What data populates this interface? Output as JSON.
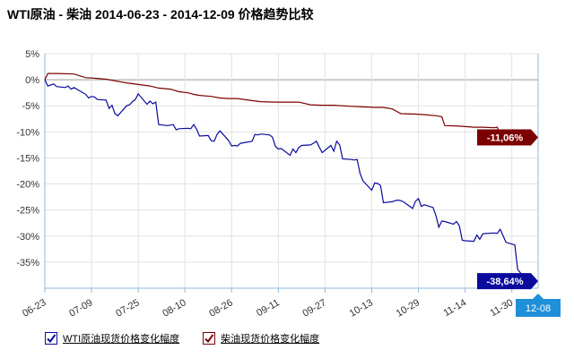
{
  "title": "WTI原油  - 柴油  2014-06-23  - 2014-12-09  价格趋势比较",
  "colors": {
    "wti": "#0a0a9c",
    "diesel": "#7b0000",
    "range_badge": "#1f8fd8",
    "zero_line": "#9a9a9a",
    "grid": "#e2e2e2",
    "axis": "#8fb8d8"
  },
  "range_end_badge": "12-08",
  "chart_data": {
    "type": "line",
    "y_unit": "%",
    "ylim": [
      -40,
      5
    ],
    "y_ticks": [
      5,
      0,
      -5,
      -10,
      -15,
      -20,
      -25,
      -30,
      -35
    ],
    "y_tick_labels": [
      "5%",
      "0%",
      "-5%",
      "-10%",
      "-15%",
      "-20%",
      "-25%",
      "-30%",
      "-35%"
    ],
    "x_range": [
      "2014-06-23",
      "2014-12-09"
    ],
    "x_ticks": [
      "2014-06-23",
      "2014-07-09",
      "2014-07-25",
      "2014-08-10",
      "2014-08-26",
      "2014-09-11",
      "2014-09-27",
      "2014-10-13",
      "2014-10-29",
      "2014-11-14",
      "2014-11-30"
    ],
    "x_tick_labels": [
      "06-23",
      "07-09",
      "07-25",
      "08-10",
      "08-26",
      "09-11",
      "09-27",
      "10-13",
      "10-29",
      "11-14",
      "11-30"
    ],
    "grid": true,
    "legend_position": "bottom-left",
    "series": [
      {
        "name": "WTI原油现货价格变化幅度",
        "color": "#0a0a9c",
        "end_label": "-38,64%",
        "points": [
          [
            "2014-06-23",
            0
          ],
          [
            "2014-06-24",
            -1.2
          ],
          [
            "2014-06-26",
            -0.8
          ],
          [
            "2014-06-27",
            -1.3
          ],
          [
            "2014-06-30",
            -1.5
          ],
          [
            "2014-07-01",
            -1.2
          ],
          [
            "2014-07-02",
            -1.8
          ],
          [
            "2014-07-03",
            -1.5
          ],
          [
            "2014-07-07",
            -2.8
          ],
          [
            "2014-07-08",
            -3.5
          ],
          [
            "2014-07-09",
            -3.2
          ],
          [
            "2014-07-10",
            -3.3
          ],
          [
            "2014-07-11",
            -3.8
          ],
          [
            "2014-07-14",
            -3.9
          ],
          [
            "2014-07-15",
            -5.5
          ],
          [
            "2014-07-16",
            -4.9
          ],
          [
            "2014-07-17",
            -6.5
          ],
          [
            "2014-07-18",
            -6.9
          ],
          [
            "2014-07-21",
            -5
          ],
          [
            "2014-07-22",
            -4.8
          ],
          [
            "2014-07-23",
            -4.2
          ],
          [
            "2014-07-24",
            -3.8
          ],
          [
            "2014-07-25",
            -2.7
          ],
          [
            "2014-07-28",
            -4.7
          ],
          [
            "2014-07-29",
            -4.1
          ],
          [
            "2014-07-30",
            -4.6
          ],
          [
            "2014-07-31",
            -4.3
          ],
          [
            "2014-08-01",
            -8.6
          ],
          [
            "2014-08-04",
            -8.8
          ],
          [
            "2014-08-05",
            -8.7
          ],
          [
            "2014-08-06",
            -8.6
          ],
          [
            "2014-08-07",
            -9.6
          ],
          [
            "2014-08-08",
            -9.4
          ],
          [
            "2014-08-11",
            -9.3
          ],
          [
            "2014-08-12",
            -9.4
          ],
          [
            "2014-08-13",
            -8.6
          ],
          [
            "2014-08-14",
            -9.5
          ],
          [
            "2014-08-15",
            -10.8
          ],
          [
            "2014-08-18",
            -10.7
          ],
          [
            "2014-08-19",
            -11.7
          ],
          [
            "2014-08-20",
            -11.8
          ],
          [
            "2014-08-21",
            -10.5
          ],
          [
            "2014-08-22",
            -9.8
          ],
          [
            "2014-08-25",
            -11.7
          ],
          [
            "2014-08-26",
            -12.7
          ],
          [
            "2014-08-27",
            -12.6
          ],
          [
            "2014-08-28",
            -12.7
          ],
          [
            "2014-08-29",
            -12.2
          ],
          [
            "2014-09-02",
            -11.8
          ],
          [
            "2014-09-03",
            -10.5
          ],
          [
            "2014-09-04",
            -10.6
          ],
          [
            "2014-09-05",
            -10.4
          ],
          [
            "2014-09-08",
            -10.6
          ],
          [
            "2014-09-09",
            -11
          ],
          [
            "2014-09-10",
            -12.8
          ],
          [
            "2014-09-11",
            -13.3
          ],
          [
            "2014-09-12",
            -13.2
          ],
          [
            "2014-09-15",
            -14.5
          ],
          [
            "2014-09-16",
            -13.3
          ],
          [
            "2014-09-17",
            -14
          ],
          [
            "2014-09-18",
            -13
          ],
          [
            "2014-09-19",
            -12.6
          ],
          [
            "2014-09-22",
            -12.5
          ],
          [
            "2014-09-23",
            -12.2
          ],
          [
            "2014-09-24",
            -11.8
          ],
          [
            "2014-09-25",
            -12.9
          ],
          [
            "2014-09-26",
            -14
          ],
          [
            "2014-09-29",
            -12.6
          ],
          [
            "2014-09-30",
            -13.7
          ],
          [
            "2014-10-01",
            -11.8
          ],
          [
            "2014-10-02",
            -12.5
          ],
          [
            "2014-10-03",
            -15.2
          ],
          [
            "2014-10-06",
            -15.3
          ],
          [
            "2014-10-07",
            -15.4
          ],
          [
            "2014-10-08",
            -15.3
          ],
          [
            "2014-10-09",
            -18
          ],
          [
            "2014-10-10",
            -19.4
          ],
          [
            "2014-10-13",
            -21.2
          ],
          [
            "2014-10-14",
            -19.8
          ],
          [
            "2014-10-15",
            -19.9
          ],
          [
            "2014-10-16",
            -20.3
          ],
          [
            "2014-10-17",
            -23.6
          ],
          [
            "2014-10-20",
            -23.4
          ],
          [
            "2014-10-21",
            -23.2
          ],
          [
            "2014-10-22",
            -23.1
          ],
          [
            "2014-10-23",
            -23.2
          ],
          [
            "2014-10-24",
            -23.5
          ],
          [
            "2014-10-27",
            -24.7
          ],
          [
            "2014-10-28",
            -23.3
          ],
          [
            "2014-10-29",
            -22.8
          ],
          [
            "2014-10-30",
            -24.3
          ],
          [
            "2014-10-31",
            -24
          ],
          [
            "2014-11-03",
            -24.5
          ],
          [
            "2014-11-04",
            -26.1
          ],
          [
            "2014-11-05",
            -28.3
          ],
          [
            "2014-11-06",
            -27.1
          ],
          [
            "2014-11-07",
            -27.2
          ],
          [
            "2014-11-10",
            -27.7
          ],
          [
            "2014-11-11",
            -27.2
          ],
          [
            "2014-11-12",
            -28
          ],
          [
            "2014-11-13",
            -30.8
          ],
          [
            "2014-11-14",
            -30.9
          ],
          [
            "2014-11-17",
            -31
          ],
          [
            "2014-11-18",
            -29.8
          ],
          [
            "2014-11-19",
            -30.6
          ],
          [
            "2014-11-20",
            -29.6
          ],
          [
            "2014-11-21",
            -29.5
          ],
          [
            "2014-11-24",
            -29.4
          ],
          [
            "2014-11-25",
            -29.5
          ],
          [
            "2014-11-26",
            -28.7
          ],
          [
            "2014-11-28",
            -31.2
          ],
          [
            "2014-12-01",
            -31.7
          ],
          [
            "2014-12-02",
            -36.4
          ],
          [
            "2014-12-03",
            -37.1
          ],
          [
            "2014-12-05",
            -37.8
          ],
          [
            "2014-12-08",
            -38.64
          ]
        ]
      },
      {
        "name": "柴油现货价格变化幅度",
        "color": "#7b0000",
        "end_label": "-11,06%",
        "points": [
          [
            "2014-06-23",
            0
          ],
          [
            "2014-06-24",
            1.2
          ],
          [
            "2014-06-27",
            1.2
          ],
          [
            "2014-07-03",
            1.1
          ],
          [
            "2014-07-07",
            0.4
          ],
          [
            "2014-07-10",
            0.3
          ],
          [
            "2014-07-14",
            0.1
          ],
          [
            "2014-07-17",
            -0.2
          ],
          [
            "2014-07-21",
            -0.6
          ],
          [
            "2014-07-25",
            -0.9
          ],
          [
            "2014-07-29",
            -1.2
          ],
          [
            "2014-08-01",
            -1.6
          ],
          [
            "2014-08-05",
            -1.8
          ],
          [
            "2014-08-08",
            -2.3
          ],
          [
            "2014-08-11",
            -2.5
          ],
          [
            "2014-08-13",
            -2.8
          ],
          [
            "2014-08-15",
            -3
          ],
          [
            "2014-08-19",
            -3.2
          ],
          [
            "2014-08-22",
            -3.5
          ],
          [
            "2014-08-25",
            -3.6
          ],
          [
            "2014-08-28",
            -3.6
          ],
          [
            "2014-09-02",
            -4
          ],
          [
            "2014-09-05",
            -4.2
          ],
          [
            "2014-09-10",
            -4.3
          ],
          [
            "2014-09-15",
            -4.3
          ],
          [
            "2014-09-18",
            -4.3
          ],
          [
            "2014-09-22",
            -4.8
          ],
          [
            "2014-09-26",
            -4.9
          ],
          [
            "2014-09-30",
            -4.9
          ],
          [
            "2014-10-06",
            -5.1
          ],
          [
            "2014-10-10",
            -5.2
          ],
          [
            "2014-10-14",
            -5.3
          ],
          [
            "2014-10-17",
            -5.3
          ],
          [
            "2014-10-20",
            -5.6
          ],
          [
            "2014-10-23",
            -6.5
          ],
          [
            "2014-10-28",
            -6.6
          ],
          [
            "2014-10-31",
            -6.7
          ],
          [
            "2014-11-04",
            -6.9
          ],
          [
            "2014-11-06",
            -7.1
          ],
          [
            "2014-11-07",
            -8.8
          ],
          [
            "2014-11-12",
            -8.9
          ],
          [
            "2014-11-17",
            -9.1
          ],
          [
            "2014-11-20",
            -9.1
          ],
          [
            "2014-11-24",
            -9.2
          ],
          [
            "2014-11-25",
            -9.1
          ],
          [
            "2014-11-26",
            -10.4
          ],
          [
            "2014-12-01",
            -10.5
          ],
          [
            "2014-12-05",
            -10.8
          ],
          [
            "2014-12-08",
            -11.06
          ]
        ]
      }
    ]
  }
}
